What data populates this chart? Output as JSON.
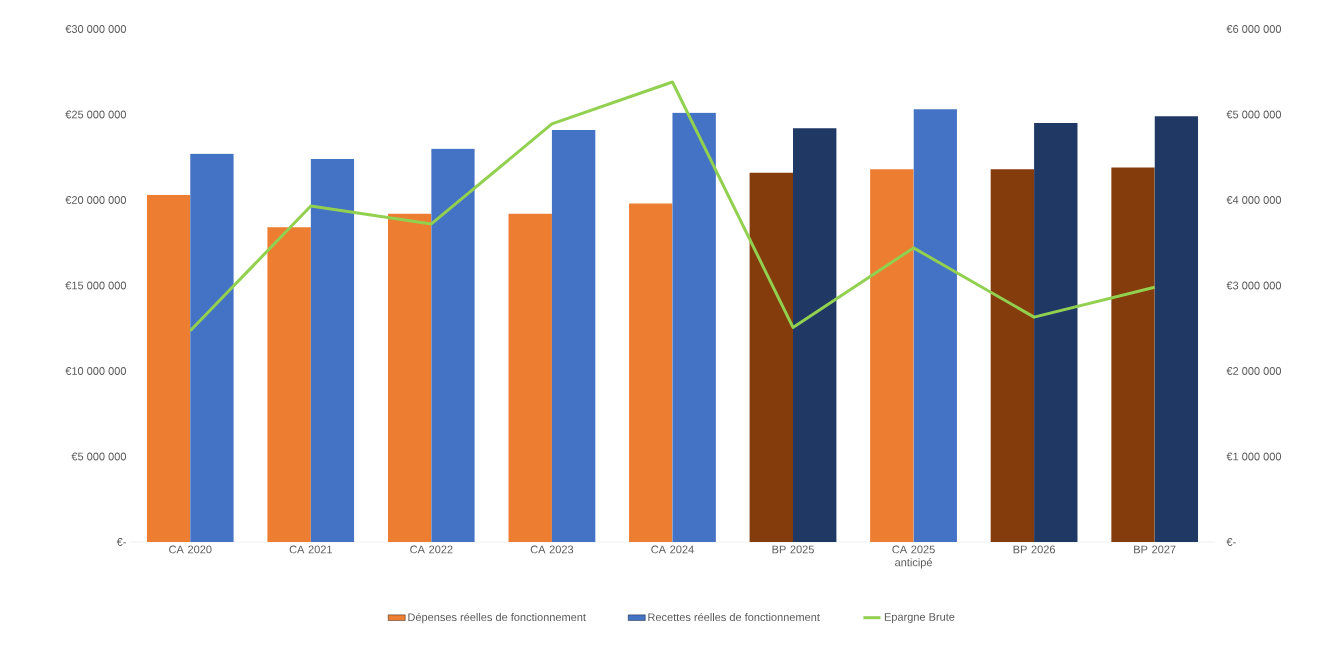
{
  "chart_data": {
    "type": "bar",
    "categories": [
      "CA 2020",
      "CA 2021",
      "CA 2022",
      "CA 2023",
      "CA 2024",
      "BP 2025",
      "CA 2025 anticipé",
      "BP 2026",
      "BP 2027"
    ],
    "series": [
      {
        "name": "Dépenses réelles de fonctionnement",
        "color": "#ed7d31",
        "colors": [
          "#ed7d31",
          "#ed7d31",
          "#ed7d31",
          "#ed7d31",
          "#ed7d31",
          "#843c0c",
          "#ed7d31",
          "#843c0c",
          "#843c0c"
        ],
        "values": [
          20300000,
          18400000,
          19200000,
          19200000,
          19800000,
          21600000,
          21800000,
          21800000,
          21900000
        ]
      },
      {
        "name": "Recettes réelles de fonctionnement",
        "color": "#4472c4",
        "colors": [
          "#4472c4",
          "#4472c4",
          "#4472c4",
          "#4472c4",
          "#4472c4",
          "#203864",
          "#4472c4",
          "#203864",
          "#203864"
        ],
        "values": [
          22700000,
          22400000,
          23000000,
          24100000,
          25100000,
          24200000,
          25300000,
          24500000,
          24900000
        ]
      },
      {
        "name": "Epargne Brute",
        "type": "line",
        "axis": "y2",
        "color": "#92d050",
        "values": [
          2470000,
          3930000,
          3720000,
          4890000,
          5380000,
          2510000,
          3440000,
          2630000,
          2980000
        ]
      }
    ],
    "ylim": [
      0,
      30000000
    ],
    "yticks": [
      {
        "value": 0,
        "label": "€-"
      },
      {
        "value": 5000000,
        "label": "€5 000 000"
      },
      {
        "value": 10000000,
        "label": "€10 000 000"
      },
      {
        "value": 15000000,
        "label": "€15 000 000"
      },
      {
        "value": 20000000,
        "label": "€20 000 000"
      },
      {
        "value": 25000000,
        "label": "€25 000 000"
      },
      {
        "value": 30000000,
        "label": "€30 000 000"
      }
    ],
    "y2lim": [
      0,
      6000000
    ],
    "y2ticks": [
      {
        "value": 0,
        "label": "€-"
      },
      {
        "value": 1000000,
        "label": "€1 000 000"
      },
      {
        "value": 2000000,
        "label": "€2 000 000"
      },
      {
        "value": 3000000,
        "label": "€3 000 000"
      },
      {
        "value": 4000000,
        "label": "€4 000 000"
      },
      {
        "value": 5000000,
        "label": "€5 000 000"
      },
      {
        "value": 6000000,
        "label": "€6 000 000"
      }
    ],
    "legend": "bottom",
    "grid": false,
    "marker": "none",
    "line_style": "solid"
  }
}
